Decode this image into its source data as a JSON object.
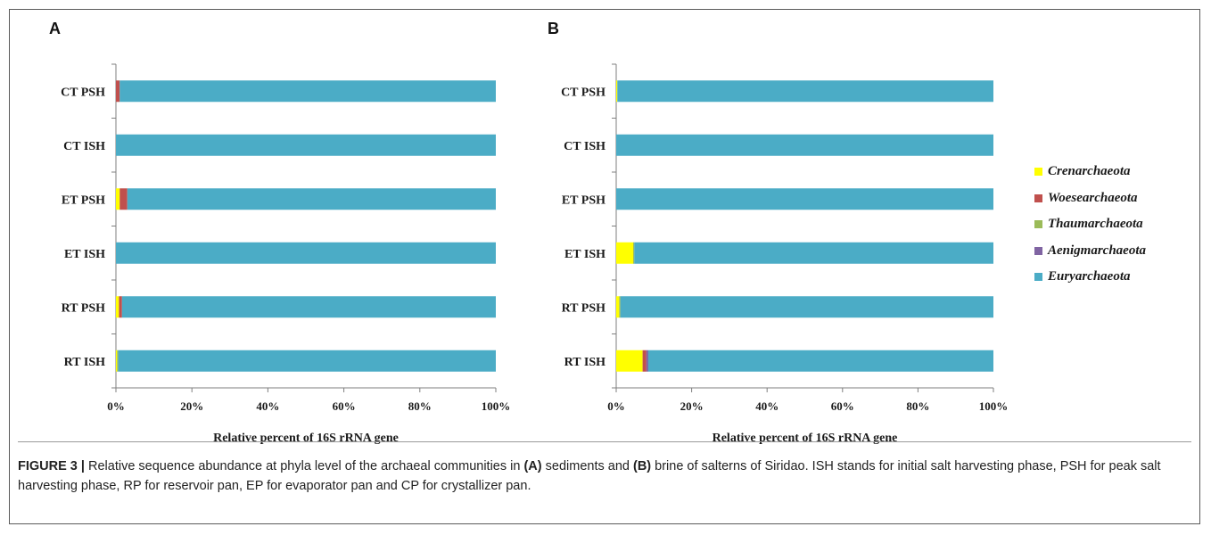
{
  "figure": {
    "panels": [
      {
        "letter": "A"
      },
      {
        "letter": "B"
      }
    ],
    "legend": [
      {
        "name": "Crenarchaeota",
        "color": "#ffff00"
      },
      {
        "name": "Woesearchaeota",
        "color": "#c0504d"
      },
      {
        "name": "Thaumarchaeota",
        "color": "#9bbb59"
      },
      {
        "name": "Aenigmarchaeota",
        "color": "#8064a2"
      },
      {
        "name": "Euryarchaeota",
        "color": "#4bacc6"
      }
    ],
    "caption": {
      "label": "FIGURE 3 |",
      "t1": " Relative sequence abundance at phyla level of the archaeal communities in ",
      "a": "(A)",
      "t2": " sediments and ",
      "b": "(B)",
      "t3": " brine of salterns of Siridao. ISH stands for initial salt harvesting phase, PSH for peak salt harvesting phase, RP for reservoir pan, EP for evaporator pan and CP for crystallizer pan."
    }
  },
  "chart_data": [
    {
      "panel": "A",
      "type": "bar",
      "orientation": "horizontal",
      "stacked": true,
      "percent_stacked": true,
      "categories": [
        "CT PSH",
        "CT ISH",
        "ET PSH",
        "ET ISH",
        "RT PSH",
        "RT ISH"
      ],
      "series": [
        {
          "name": "Crenarchaeota",
          "values": [
            0,
            0,
            1.0,
            0,
            0.8,
            0.3
          ]
        },
        {
          "name": "Woesearchaeota",
          "values": [
            1.0,
            0,
            2.0,
            0,
            0.8,
            0
          ]
        },
        {
          "name": "Thaumarchaeota",
          "values": [
            0,
            0,
            0,
            0,
            0,
            0.3
          ]
        },
        {
          "name": "Aenigmarchaeota",
          "values": [
            0,
            0,
            0,
            0,
            0,
            0
          ]
        },
        {
          "name": "Euryarchaeota",
          "values": [
            99.0,
            100,
            97.0,
            100,
            98.4,
            99.4
          ]
        }
      ],
      "xlabel": "Relative percent of 16S rRNA gene",
      "xticks": [
        "0%",
        "20%",
        "40%",
        "60%",
        "80%",
        "100%"
      ],
      "xlim": [
        0,
        100
      ],
      "grid": false,
      "legend": "right"
    },
    {
      "panel": "B",
      "type": "bar",
      "orientation": "horizontal",
      "stacked": true,
      "percent_stacked": true,
      "categories": [
        "CT PSH",
        "CT ISH",
        "ET PSH",
        "ET ISH",
        "RT PSH",
        "RT ISH"
      ],
      "series": [
        {
          "name": "Crenarchaeota",
          "values": [
            0.3,
            0,
            0,
            4.5,
            0.8,
            7.0
          ]
        },
        {
          "name": "Woesearchaeota",
          "values": [
            0,
            0,
            0,
            0,
            0,
            1.0
          ]
        },
        {
          "name": "Thaumarchaeota",
          "values": [
            0,
            0,
            0,
            0.3,
            0.3,
            0
          ]
        },
        {
          "name": "Aenigmarchaeota",
          "values": [
            0,
            0,
            0,
            0,
            0,
            0.5
          ]
        },
        {
          "name": "Euryarchaeota",
          "values": [
            99.7,
            100,
            100,
            95.2,
            98.9,
            91.5
          ]
        }
      ],
      "xlabel": "Relative percent of 16S rRNA gene",
      "xticks": [
        "0%",
        "20%",
        "40%",
        "60%",
        "80%",
        "100%"
      ],
      "xlim": [
        0,
        100
      ],
      "grid": false,
      "legend": "right"
    }
  ]
}
